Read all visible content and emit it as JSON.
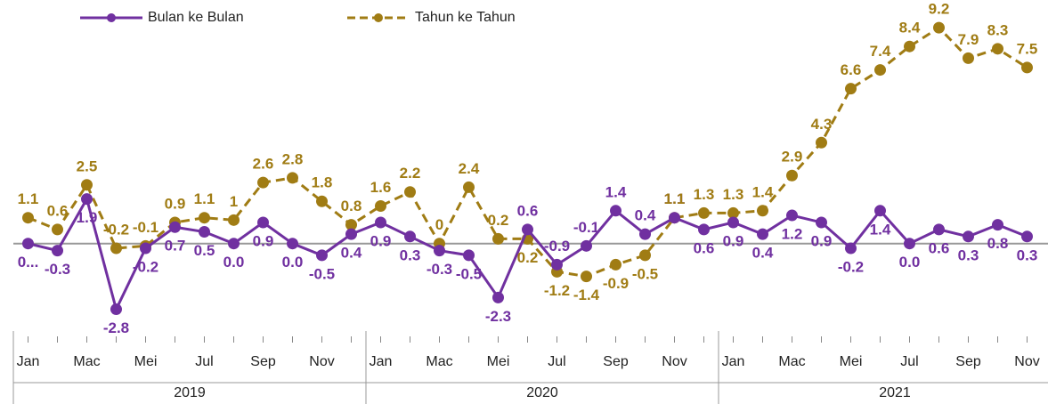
{
  "chart_data": {
    "type": "line",
    "categories": [
      "Jan",
      null,
      "Mac",
      null,
      "Mei",
      null,
      "Jul",
      null,
      "Sep",
      null,
      "Nov",
      null,
      "Jan",
      null,
      "Mac",
      null,
      "Mei",
      null,
      "Jul",
      null,
      "Sep",
      null,
      "Nov",
      null,
      "Jan",
      null,
      "Mac",
      null,
      "Mei",
      null,
      "Jul",
      null,
      "Sep",
      null,
      "Nov"
    ],
    "years": [
      "2019",
      "2020",
      "2021"
    ],
    "ylim": [
      -3.5,
      10
    ],
    "series": [
      {
        "name": "Bulan ke Bulan",
        "color": "#7030a0",
        "dashed": false,
        "values": [
          0.0,
          -0.3,
          1.9,
          -2.8,
          -0.2,
          0.7,
          0.5,
          0.0,
          0.9,
          0.0,
          -0.5,
          0.4,
          0.9,
          0.3,
          -0.3,
          -0.5,
          -2.3,
          0.6,
          -0.9,
          -0.1,
          1.4,
          0.4,
          1.1,
          0.6,
          0.9,
          0.4,
          1.2,
          0.9,
          -0.2,
          1.4,
          0.0,
          0.6,
          0.3,
          0.8,
          0.3
        ],
        "value_labels": [
          "0...",
          "-0.3",
          "1.9",
          "-2.8",
          "-0.2",
          "0.7",
          "0.5",
          "0.0",
          "0.9",
          "0.0",
          "-0.5",
          "0.4",
          "0.9",
          "0.3",
          "-0.3",
          "-0.5",
          "-2.3",
          "0.6",
          "-0.9",
          "-0.1",
          "1.4",
          "0.4",
          "1.1",
          "0.6",
          "0.9",
          "0.4",
          "1.2",
          "0.9",
          "-0.2",
          "1.4",
          "0.0",
          "0.6",
          "0.3",
          "0.8",
          "0.3"
        ]
      },
      {
        "name": "Tahun ke Tahun",
        "color": "#a07c14",
        "dashed": true,
        "values": [
          1.1,
          0.6,
          2.5,
          -0.2,
          -0.1,
          0.9,
          1.1,
          1.0,
          2.6,
          2.8,
          1.8,
          0.8,
          1.6,
          2.2,
          0.0,
          2.4,
          0.2,
          0.2,
          -1.2,
          -1.4,
          -0.9,
          -0.5,
          1.1,
          1.3,
          1.3,
          1.4,
          2.9,
          4.3,
          6.6,
          7.4,
          8.4,
          9.2,
          7.9,
          8.3,
          7.5
        ]
      }
    ]
  }
}
